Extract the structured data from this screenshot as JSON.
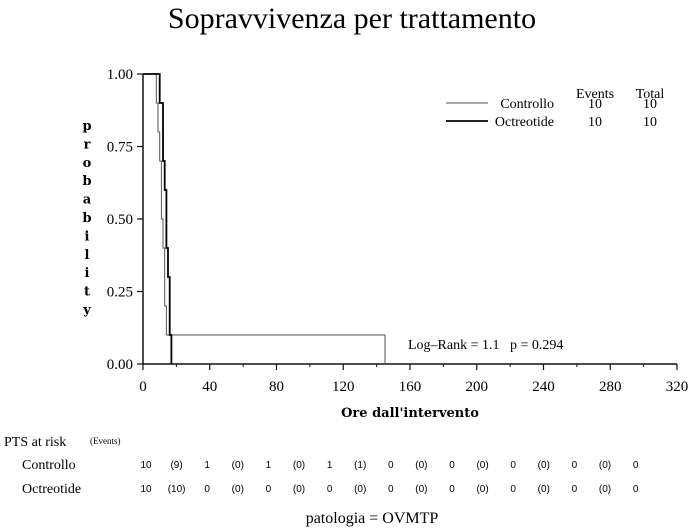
{
  "chart_data": {
    "type": "line",
    "title": "Sopravvivenza per trattamento",
    "xlabel": "Ore dall'intervento",
    "ylabel": "probability",
    "xlim": [
      0,
      320
    ],
    "ylim": [
      0,
      1
    ],
    "xticks": [
      "0",
      "40",
      "80",
      "120",
      "160",
      "200",
      "240",
      "280",
      "320"
    ],
    "yticks": [
      "0.00",
      "0.25",
      "0.50",
      "0.75",
      "1.00"
    ],
    "series": [
      {
        "name": "Controllo",
        "events": "10",
        "total": "10",
        "x": [
          0,
          8,
          8,
          9,
          9,
          10,
          10,
          11,
          11,
          12,
          12,
          13,
          13,
          14,
          14,
          145,
          145
        ],
        "y": [
          1.0,
          1.0,
          0.9,
          0.9,
          0.8,
          0.8,
          0.7,
          0.7,
          0.5,
          0.5,
          0.4,
          0.4,
          0.2,
          0.2,
          0.1,
          0.1,
          0.0
        ]
      },
      {
        "name": "Octreotide",
        "events": "10",
        "total": "10",
        "x": [
          0,
          10,
          10,
          12,
          12,
          13,
          13,
          14,
          14,
          15,
          15,
          16,
          16,
          17,
          17
        ],
        "y": [
          1.0,
          1.0,
          0.9,
          0.9,
          0.7,
          0.7,
          0.6,
          0.6,
          0.4,
          0.4,
          0.3,
          0.3,
          0.1,
          0.1,
          0.0
        ]
      }
    ],
    "legend_header": [
      "Events",
      "Total"
    ],
    "annotation": "Log–Rank = 1.1   p = 0.294"
  },
  "risk_table": {
    "title": "PTS at risk",
    "subtitle": "(Events)",
    "rows": [
      {
        "label": "Controllo",
        "values": [
          "10",
          "(9)",
          "1",
          "(0)",
          "1",
          "(0)",
          "1",
          "(1)",
          "0",
          "(0)",
          "0",
          "(0)",
          "0",
          "(0)",
          "0",
          "(0)",
          "0"
        ]
      },
      {
        "label": "Octreotide",
        "values": [
          "10",
          "(10)",
          "0",
          "(0)",
          "0",
          "(0)",
          "0",
          "(0)",
          "0",
          "(0)",
          "0",
          "(0)",
          "0",
          "(0)",
          "0",
          "(0)",
          "0"
        ]
      }
    ]
  },
  "footer": "patologia = OVMTP",
  "colors": {
    "controllo": "#555555",
    "octreotide": "#000000",
    "axis": "#111111"
  }
}
